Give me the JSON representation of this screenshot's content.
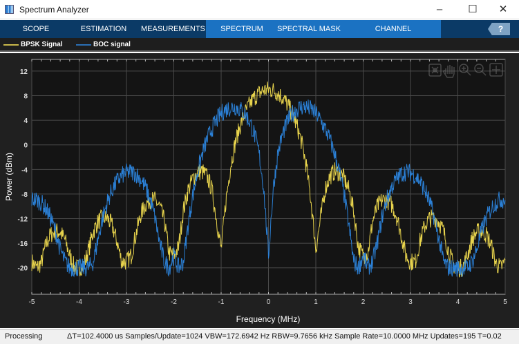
{
  "window": {
    "title": "Spectrum Analyzer",
    "minimize": "–",
    "maximize": "☐",
    "close": "✕"
  },
  "toolbar": {
    "tabs": [
      "SCOPE",
      "ESTIMATION",
      "MEASUREMENTS",
      "SPECTRUM",
      "SPECTRAL MASK",
      "CHANNEL MEASUREMENTS"
    ],
    "active": "SPECTRUM",
    "help": "?"
  },
  "legend": [
    {
      "label": "BPSK Signal",
      "color": "#e8d44d"
    },
    {
      "label": "BOC signal",
      "color": "#2b80d6"
    }
  ],
  "plot_tools": [
    "zoom-reset-icon",
    "pan-hand-icon",
    "zoom-in-icon",
    "zoom-out-icon",
    "autoscale-icon"
  ],
  "status": {
    "state": "Processing",
    "details": "ΔT=102.4000 us  Samples/Update=1024  VBW=172.6942 Hz  RBW=9.7656 kHz  Sample Rate=10.0000 MHz  Updates=195  T=0.02"
  },
  "chart_data": {
    "type": "line",
    "xlabel": "Frequency (MHz)",
    "ylabel": "Power (dBm)",
    "xlim": [
      -5,
      5
    ],
    "ylim": [
      -24.3,
      13.9
    ],
    "xticks": [
      -5,
      -4,
      -3,
      -2,
      -1,
      0,
      1,
      2,
      3,
      4,
      5
    ],
    "yticks": [
      -20,
      -16,
      -12,
      -8,
      -4,
      0,
      4,
      8,
      12
    ],
    "grid": true,
    "background": "#141414",
    "x_start": -5,
    "x_step": 0.1,
    "series": [
      {
        "name": "BPSK Signal",
        "color": "#e8d44d",
        "values": [
          -19,
          -20,
          -19.2,
          -16.2,
          -14.6,
          -14,
          -14.2,
          -15.4,
          -18,
          -20,
          -20,
          -19.5,
          -17.1,
          -14.1,
          -12.5,
          -11.8,
          -12,
          -13.2,
          -15.7,
          -19,
          -19,
          -18,
          -14.5,
          -11.4,
          -9.7,
          -8.9,
          -9,
          -10,
          -12.4,
          -17.6,
          -18,
          -16.7,
          -10.7,
          -7.4,
          -5.5,
          -4.5,
          -4.3,
          -5.1,
          -7.1,
          -12,
          -17,
          -9.2,
          -3.4,
          0.4,
          3.1,
          5.1,
          6.6,
          7.7,
          8.4,
          8.9,
          9,
          8.9,
          8.4,
          7.7,
          6.6,
          5.1,
          3.1,
          0.4,
          -3.4,
          -9.2,
          -17,
          -12,
          -7.1,
          -5.1,
          -4.3,
          -4.5,
          -5.5,
          -7.4,
          -10.7,
          -16.7,
          -18,
          -17.6,
          -12.4,
          -10,
          -9,
          -8.9,
          -9.7,
          -11.4,
          -14.5,
          -18,
          -19,
          -19,
          -15.7,
          -13.2,
          -12,
          -11.8,
          -12.5,
          -14.1,
          -17.1,
          -19.5,
          -20,
          -20,
          -18,
          -15.4,
          -14.2,
          -14,
          -14.6,
          -16.2,
          -19.2,
          -20,
          -19
        ]
      },
      {
        "name": "BOC signal",
        "color": "#2b80d6",
        "values": [
          -8.9,
          -8.9,
          -9.4,
          -10.4,
          -11.9,
          -14,
          -17,
          -19,
          -20,
          -20,
          -20,
          -20,
          -20,
          -19,
          -15.3,
          -11.8,
          -9.2,
          -7.3,
          -5.9,
          -5,
          -4.5,
          -4.4,
          -4.7,
          -5.6,
          -6.9,
          -8.9,
          -11.7,
          -15.9,
          -19,
          -20,
          -18,
          -20,
          -19,
          -13.2,
          -8.2,
          -4.5,
          -1.5,
          0.8,
          2.6,
          4,
          5.1,
          5.8,
          6.1,
          6.2,
          5.8,
          5.1,
          3.8,
          1.8,
          -1.3,
          -7.1,
          -18,
          -7.1,
          -1.3,
          1.8,
          3.8,
          5.1,
          5.8,
          6.2,
          6.1,
          5.8,
          5.1,
          4,
          2.6,
          0.8,
          -1.5,
          -4.5,
          -8.2,
          -13.2,
          -19,
          -20,
          -18,
          -20,
          -19,
          -15.9,
          -11.7,
          -8.9,
          -6.9,
          -5.6,
          -4.7,
          -4.4,
          -4.5,
          -5,
          -5.9,
          -7.3,
          -9.2,
          -11.8,
          -15.3,
          -19,
          -20,
          -20,
          -20,
          -20,
          -20,
          -19,
          -17,
          -14,
          -11.9,
          -10.4,
          -9.4,
          -8.9,
          -8.9
        ]
      }
    ]
  }
}
